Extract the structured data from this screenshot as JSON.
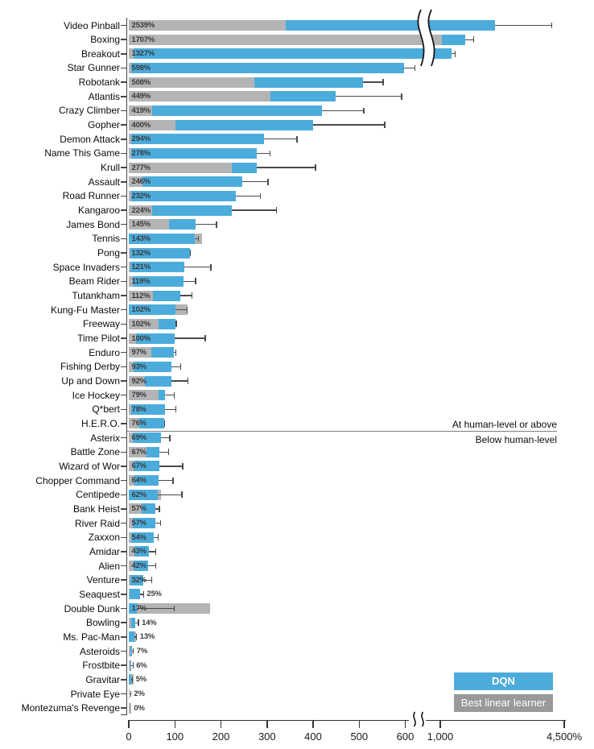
{
  "chart_data": {
    "type": "bar",
    "orientation": "horizontal",
    "unit": "percent of human-normalized score",
    "series": [
      {
        "name": "DQN",
        "color": "#4bacdc"
      },
      {
        "name": "Best linear learner",
        "color": "#97999b"
      }
    ],
    "bar_gray_color": "#b3b4b6",
    "divider_above": "At human-level or above",
    "divider_below": "Below human-level",
    "value_axis": {
      "break_between": [
        620,
        1000
      ],
      "max": 4500,
      "ticks": [
        {
          "v": 0,
          "label": "0"
        },
        {
          "v": 100,
          "label": "100"
        },
        {
          "v": 200,
          "label": "200"
        },
        {
          "v": 300,
          "label": "300"
        },
        {
          "v": 400,
          "label": "400"
        },
        {
          "v": 500,
          "label": "500"
        },
        {
          "v": 600,
          "label": "600"
        },
        {
          "v": 1000,
          "label": "1,000"
        },
        {
          "v": 4500,
          "label": "4,500%"
        }
      ]
    },
    "games": [
      {
        "label": "Video Pinball",
        "pct": "2539%",
        "dqn": 2539,
        "linear": 340,
        "err": 4160
      },
      {
        "label": "Boxing",
        "pct": "1707%",
        "dqn": 1707,
        "linear": 1045,
        "err": 1960
      },
      {
        "label": "Breakout",
        "pct": "1327%",
        "dqn": 1327,
        "linear": 10,
        "err": 1430
      },
      {
        "label": "Star Gunner",
        "pct": "598%",
        "dqn": 598,
        "linear": 5,
        "err": 630
      },
      {
        "label": "Robotank",
        "pct": "508%",
        "dqn": 508,
        "linear": 273,
        "err": 553
      },
      {
        "label": "Atlantis",
        "pct": "449%",
        "dqn": 449,
        "linear": 308,
        "err": 593
      },
      {
        "label": "Crazy Climber",
        "pct": "419%",
        "dqn": 419,
        "linear": 51,
        "err": 511
      },
      {
        "label": "Gopher",
        "pct": "400%",
        "dqn": 400,
        "linear": 101,
        "err": 556
      },
      {
        "label": "Demon Attack",
        "pct": "294%",
        "dqn": 294,
        "linear": 5,
        "err": 366
      },
      {
        "label": "Name This Game",
        "pct": "278%",
        "dqn": 278,
        "linear": 6,
        "err": 307
      },
      {
        "label": "Krull",
        "pct": "277%",
        "dqn": 277,
        "linear": 223,
        "err": 406
      },
      {
        "label": "Assault",
        "pct": "246%",
        "dqn": 246,
        "linear": 29,
        "err": 303
      },
      {
        "label": "Road Runner",
        "pct": "232%",
        "dqn": 232,
        "linear": 6,
        "err": 286
      },
      {
        "label": "Kangaroo",
        "pct": "224%",
        "dqn": 224,
        "linear": 50,
        "err": 321
      },
      {
        "label": "James Bond",
        "pct": "145%",
        "dqn": 145,
        "linear": 87,
        "err": 191
      },
      {
        "label": "Tennis",
        "pct": "143%",
        "dqn": 143,
        "linear": 158,
        "err": 152
      },
      {
        "label": "Pong",
        "pct": "132%",
        "dqn": 132,
        "linear": 3,
        "err": 135
      },
      {
        "label": "Space Invaders",
        "pct": "121%",
        "dqn": 121,
        "linear": 4,
        "err": 179
      },
      {
        "label": "Beam Rider",
        "pct": "119%",
        "dqn": 119,
        "linear": 8,
        "err": 146
      },
      {
        "label": "Tutankham",
        "pct": "112%",
        "dqn": 112,
        "linear": 52,
        "err": 138
      },
      {
        "label": "Kung-Fu Master",
        "pct": "102%",
        "dqn": 102,
        "linear": 128,
        "err": 127
      },
      {
        "label": "Freeway",
        "pct": "102%",
        "dqn": 102,
        "linear": 65,
        "err": 104
      },
      {
        "label": "Time Pilot",
        "pct": "100%",
        "dqn": 100,
        "linear": 15,
        "err": 167
      },
      {
        "label": "Enduro",
        "pct": "97%",
        "dqn": 97,
        "linear": 48,
        "err": 103
      },
      {
        "label": "Fishing Derby",
        "pct": "93%",
        "dqn": 93,
        "linear": 10,
        "err": 113
      },
      {
        "label": "Up and Down",
        "pct": "92%",
        "dqn": 92,
        "linear": 34,
        "err": 129
      },
      {
        "label": "Ice Hockey",
        "pct": "79%",
        "dqn": 79,
        "linear": 64,
        "err": 100
      },
      {
        "label": "Q*bert",
        "pct": "78%",
        "dqn": 78,
        "linear": 5,
        "err": 103
      },
      {
        "label": "H.E.R.O.",
        "pct": "76%",
        "dqn": 76,
        "linear": 23,
        "err": 78
      },
      {
        "label": "Asterix",
        "pct": "69%",
        "dqn": 69,
        "linear": 8,
        "err": 90
      },
      {
        "label": "Battle Zone",
        "pct": "67%",
        "dqn": 67,
        "linear": 39,
        "err": 87
      },
      {
        "label": "Wizard of Wor",
        "pct": "67%",
        "dqn": 67,
        "linear": 10,
        "err": 118
      },
      {
        "label": "Chopper Command",
        "pct": "64%",
        "dqn": 64,
        "linear": 13,
        "err": 97
      },
      {
        "label": "Centipede",
        "pct": "62%",
        "dqn": 62,
        "linear": 69,
        "err": 116
      },
      {
        "label": "Bank Heist",
        "pct": "57%",
        "dqn": 57,
        "linear": 27,
        "err": 67
      },
      {
        "label": "River Raid",
        "pct": "57%",
        "dqn": 57,
        "linear": 8,
        "err": 70
      },
      {
        "label": "Zaxxon",
        "pct": "54%",
        "dqn": 54,
        "linear": 5,
        "err": 65
      },
      {
        "label": "Amidar",
        "pct": "43%",
        "dqn": 43,
        "linear": 13,
        "err": 59
      },
      {
        "label": "Alien",
        "pct": "42%",
        "dqn": 42,
        "linear": 10,
        "err": 59
      },
      {
        "label": "Venture",
        "pct": "32%",
        "dqn": 32,
        "linear": 3,
        "err": 51
      },
      {
        "label": "Seaquest",
        "pct": "25%",
        "dqn": 25,
        "linear": 2,
        "err": 33,
        "out": true
      },
      {
        "label": "Double Dunk",
        "pct": "17%",
        "dqn": 17,
        "linear": 176,
        "err": 100
      },
      {
        "label": "Bowling",
        "pct": "14%",
        "dqn": 14,
        "linear": 5,
        "err": 22,
        "out": true
      },
      {
        "label": "Ms. Pac-Man",
        "pct": "13%",
        "dqn": 13,
        "linear": 16,
        "err": 18,
        "out": true
      },
      {
        "label": "Asteroids",
        "pct": "7%",
        "dqn": 7,
        "linear": 3,
        "err": 11,
        "out": true
      },
      {
        "label": "Frostbite",
        "pct": "6%",
        "dqn": 6,
        "linear": 4,
        "err": 10,
        "out": true
      },
      {
        "label": "Gravitar",
        "pct": "5%",
        "dqn": 5,
        "linear": 11,
        "err": 9,
        "out": true
      },
      {
        "label": "Private Eye",
        "pct": "2%",
        "dqn": 2,
        "linear": 1,
        "err": 5,
        "out": true
      },
      {
        "label": "Montezuma's Revenge",
        "pct": "0%",
        "dqn": 0,
        "linear": 5,
        "err": null,
        "out": true
      }
    ]
  }
}
